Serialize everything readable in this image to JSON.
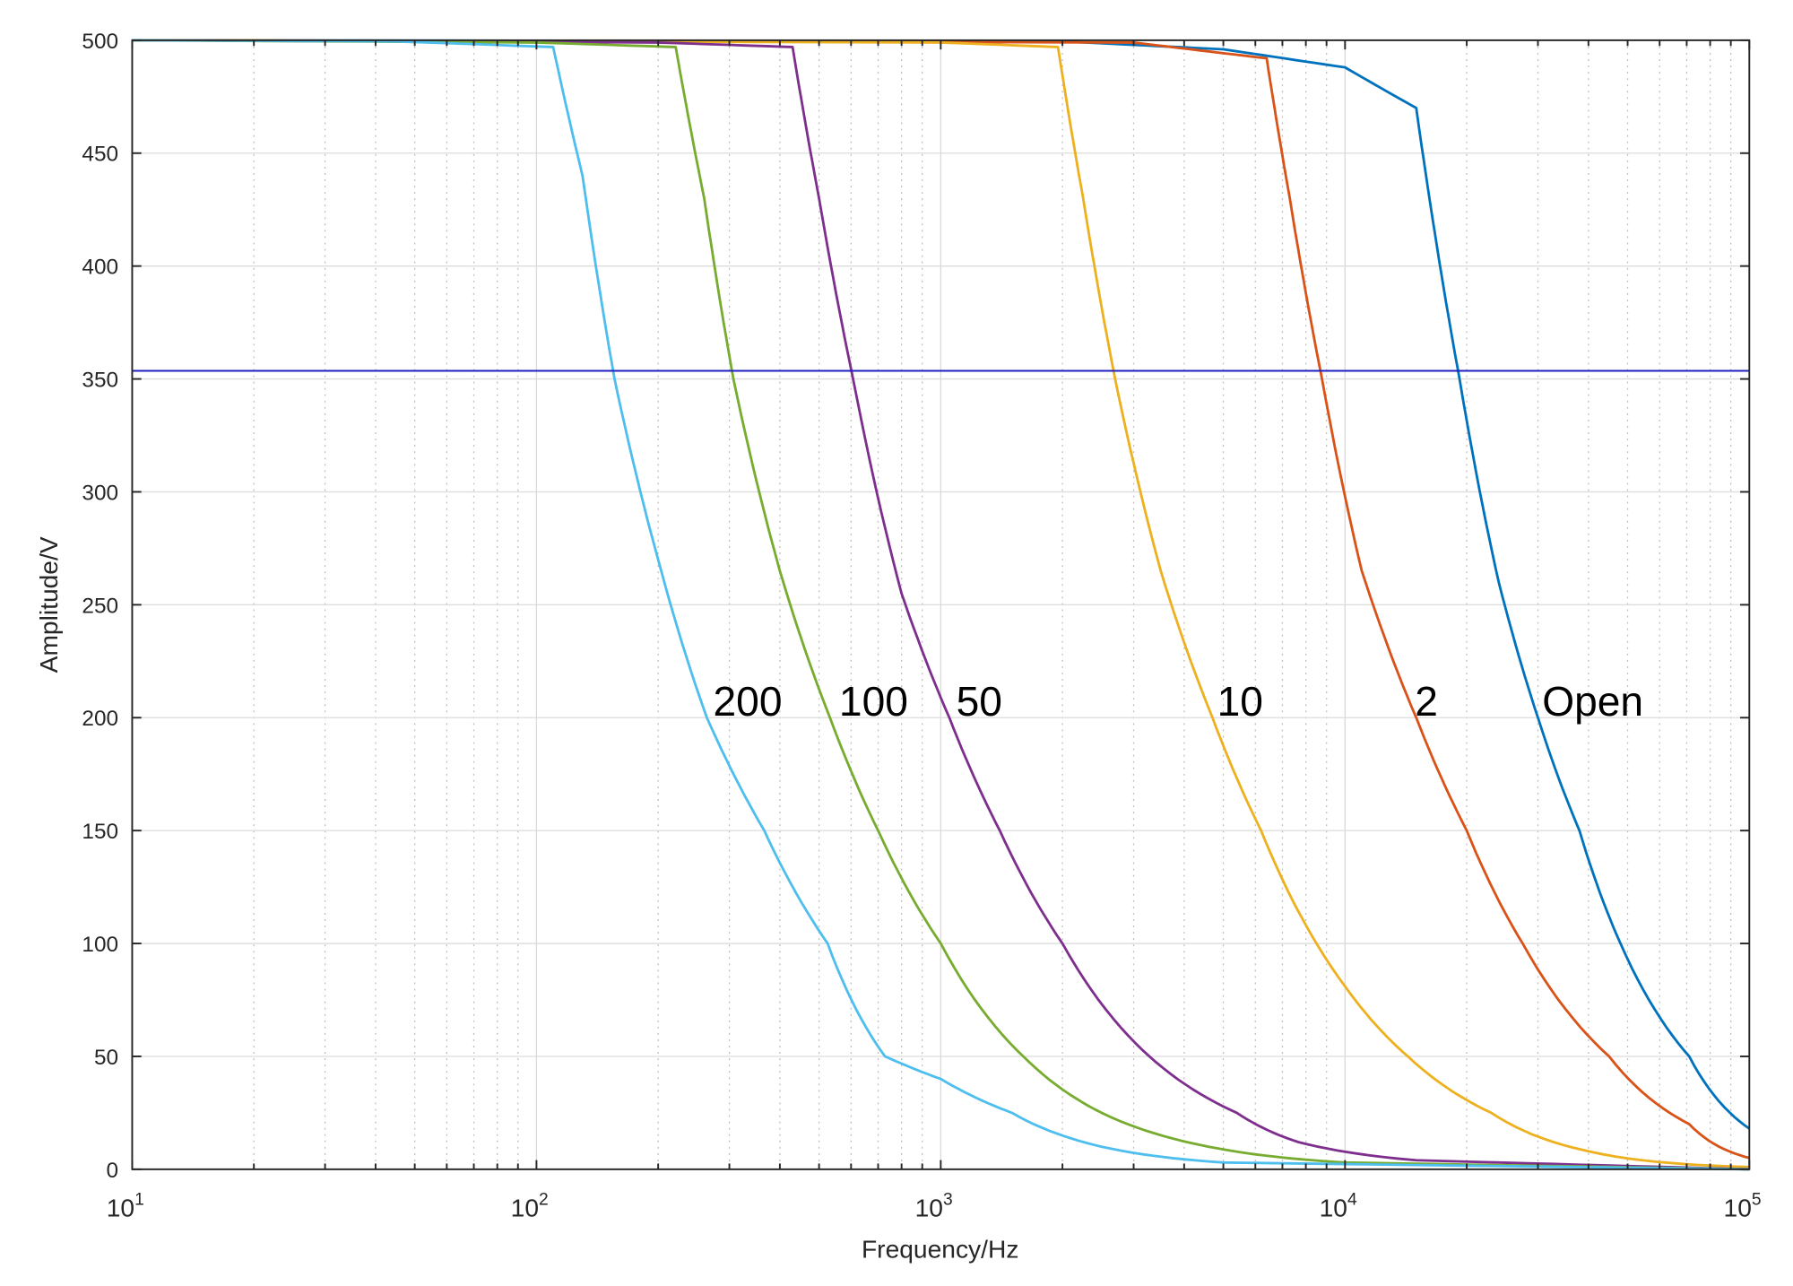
{
  "chart_data": {
    "type": "line",
    "title": "",
    "xlabel": "Frequency/Hz",
    "ylabel": "Amplitude/V",
    "xscale": "log",
    "xlim": [
      10,
      100000
    ],
    "ylim": [
      0,
      500
    ],
    "grid": true,
    "legend": "none",
    "x_ticks": [
      {
        "base": "10",
        "exp": "1",
        "value": 10
      },
      {
        "base": "10",
        "exp": "2",
        "value": 100
      },
      {
        "base": "10",
        "exp": "3",
        "value": 1000
      },
      {
        "base": "10",
        "exp": "4",
        "value": 10000
      },
      {
        "base": "10",
        "exp": "5",
        "value": 100000
      }
    ],
    "y_ticks": [
      "0",
      "50",
      "100",
      "150",
      "200",
      "250",
      "300",
      "350",
      "400",
      "450",
      "500"
    ],
    "reference_line": {
      "y": 353.6,
      "color": "#1f1fbf"
    },
    "series": [
      {
        "name": "Open",
        "color": "#0072BD",
        "label_at": [
          41000,
          207
        ],
        "points": [
          [
            10,
            500
          ],
          [
            2000,
            499.5
          ],
          [
            5000,
            496
          ],
          [
            10000,
            488
          ],
          [
            15000,
            470
          ],
          [
            16500,
            420
          ],
          [
            19200,
            350
          ],
          [
            24000,
            260
          ],
          [
            30000,
            200
          ],
          [
            38000,
            150
          ],
          [
            48000,
            100
          ],
          [
            71000,
            50
          ],
          [
            100000,
            18
          ]
        ]
      },
      {
        "name": "2",
        "color": "#D95319",
        "label_at": [
          15900,
          207
        ],
        "points": [
          [
            10,
            500
          ],
          [
            3000,
            499
          ],
          [
            6400,
            492
          ],
          [
            7300,
            430
          ],
          [
            8770,
            350
          ],
          [
            11000,
            265
          ],
          [
            15000,
            200
          ],
          [
            20000,
            150
          ],
          [
            27500,
            100
          ],
          [
            45000,
            50
          ],
          [
            71000,
            20
          ],
          [
            100000,
            5
          ]
        ]
      },
      {
        "name": "10",
        "color": "#EDB120",
        "label_at": [
          5500,
          207
        ],
        "points": [
          [
            10,
            500
          ],
          [
            1000,
            499
          ],
          [
            1950,
            497
          ],
          [
            2250,
            430
          ],
          [
            2700,
            350
          ],
          [
            3500,
            265
          ],
          [
            4700,
            200
          ],
          [
            6200,
            150
          ],
          [
            8500,
            100
          ],
          [
            10000,
            81
          ],
          [
            14300,
            50
          ],
          [
            23000,
            25
          ],
          [
            40000,
            8
          ],
          [
            100000,
            1
          ]
        ]
      },
      {
        "name": "50",
        "color": "#7E2F8E",
        "label_at": [
          1245,
          207
        ],
        "points": [
          [
            10,
            500
          ],
          [
            200,
            499
          ],
          [
            430,
            497
          ],
          [
            500,
            430
          ],
          [
            607,
            350
          ],
          [
            800,
            255
          ],
          [
            1050,
            200
          ],
          [
            1400,
            150
          ],
          [
            2000,
            100
          ],
          [
            3280,
            50
          ],
          [
            5400,
            25
          ],
          [
            7680,
            12
          ],
          [
            15000,
            4
          ],
          [
            100000,
            0
          ]
        ]
      },
      {
        "name": "100",
        "color": "#77AC30",
        "label_at": [
          682,
          207
        ],
        "points": [
          [
            10,
            500
          ],
          [
            100,
            499
          ],
          [
            221,
            497
          ],
          [
            260,
            430
          ],
          [
            307,
            350
          ],
          [
            400,
            265
          ],
          [
            532,
            200
          ],
          [
            700,
            150
          ],
          [
            1000,
            100
          ],
          [
            1600,
            50
          ],
          [
            2500,
            25
          ],
          [
            4600,
            10
          ],
          [
            10000,
            3
          ],
          [
            100000,
            0
          ]
        ]
      },
      {
        "name": "200",
        "color": "#4DBEEE",
        "label_at": [
          333,
          207
        ],
        "points": [
          [
            10,
            500
          ],
          [
            45,
            499.5
          ],
          [
            110,
            497
          ],
          [
            130,
            440
          ],
          [
            156,
            350
          ],
          [
            200,
            270
          ],
          [
            264,
            200
          ],
          [
            366,
            150
          ],
          [
            525,
            100
          ],
          [
            728,
            50
          ],
          [
            1000,
            40
          ],
          [
            1500,
            25
          ],
          [
            2500,
            10
          ],
          [
            5000,
            3
          ],
          [
            100000,
            0
          ]
        ]
      }
    ]
  }
}
